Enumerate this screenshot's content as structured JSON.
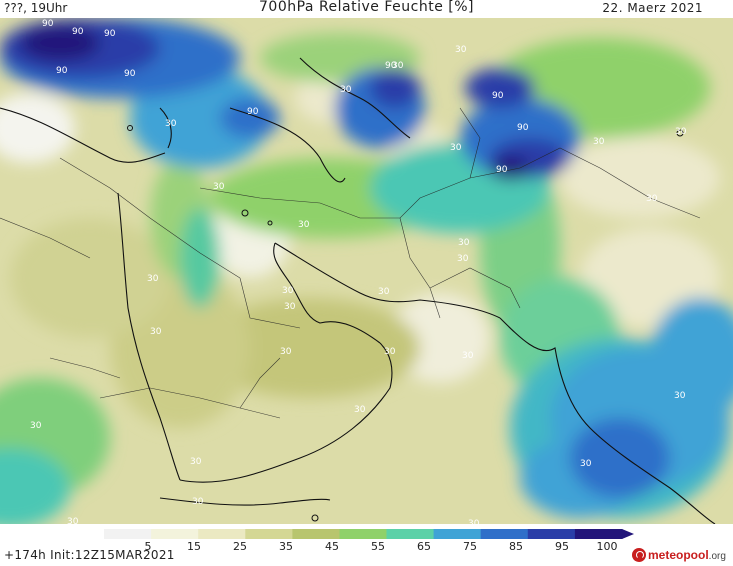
{
  "header": {
    "left_text": "???, 19Uhr",
    "title": "700hPa Relative Feuchte [%]",
    "date": "22. Maerz 2021"
  },
  "footer": {
    "run_info": "+174h Init:12Z15MAR2021",
    "logo_name": "meteopool",
    "logo_tld": ".org"
  },
  "legend": {
    "labels": [
      "5",
      "15",
      "25",
      "35",
      "45",
      "55",
      "65",
      "75",
      "85",
      "95",
      "100"
    ],
    "colors": [
      "#f2f2f2",
      "#f3f3dc",
      "#ebe9c2",
      "#d4d794",
      "#b8c56e",
      "#8fd16a",
      "#5bd1a8",
      "#3fa3d6",
      "#2f6fc9",
      "#2a3ea8",
      "#22157a"
    ]
  },
  "contour_labels": [
    "90",
    "90",
    "90",
    "90",
    "90",
    "90",
    "90",
    "90",
    "90",
    "90",
    "30",
    "30",
    "30",
    "30",
    "30",
    "30",
    "30",
    "30",
    "30",
    "30",
    "30",
    "30",
    "30",
    "30",
    "30",
    "30",
    "30",
    "30",
    "30",
    "30",
    "30",
    "30",
    "30",
    "30",
    "30",
    "30",
    "30",
    "30"
  ]
}
